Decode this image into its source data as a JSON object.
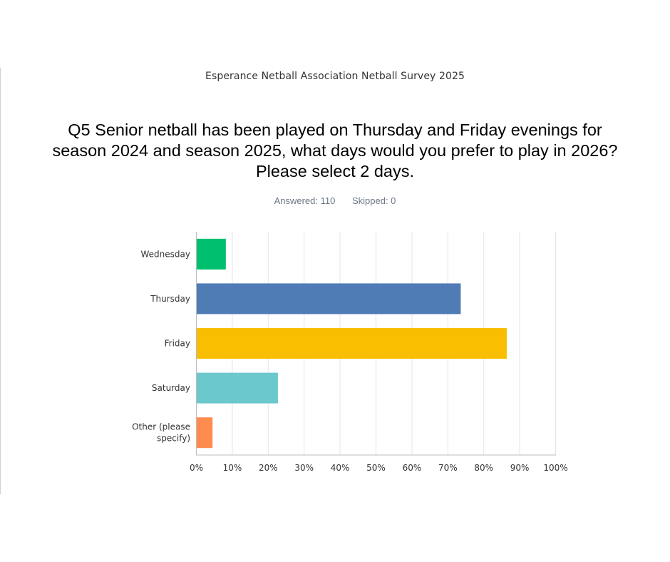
{
  "header": {
    "survey_title": "Esperance Netball Association Netball Survey 2025",
    "question": "Q5 Senior netball has been played on Thursday and Friday evenings for season 2024 and season 2025, what days would you prefer to play in 2026? Please select 2 days.",
    "answered": "Answered: 110",
    "skipped": "Skipped: 0"
  },
  "chart_data": {
    "type": "bar",
    "orientation": "horizontal",
    "categories": [
      "Wednesday",
      "Thursday",
      "Friday",
      "Saturday",
      "Other (please specify)"
    ],
    "values": [
      8.2,
      73.6,
      86.4,
      22.7,
      4.5
    ],
    "unit": "%",
    "xlim": [
      0,
      100
    ],
    "xticks": [
      "0%",
      "10%",
      "20%",
      "30%",
      "40%",
      "50%",
      "60%",
      "70%",
      "80%",
      "90%",
      "100%"
    ],
    "grid": true,
    "colors": [
      "#00bf6f",
      "#507cb6",
      "#f9be00",
      "#6bc8cd",
      "#ff8b4f"
    ]
  }
}
